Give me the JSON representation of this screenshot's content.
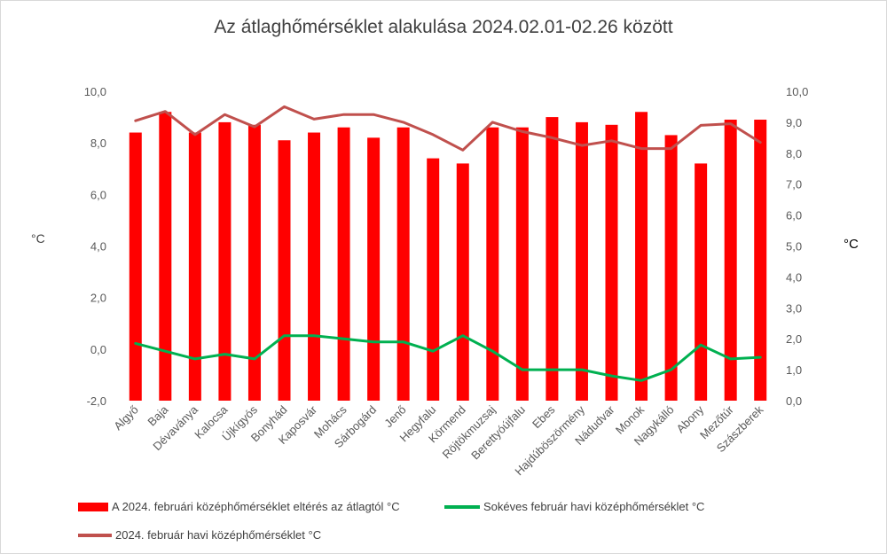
{
  "chart_data": {
    "type": "bar",
    "title": "Az átlaghőmérséklet alakulása 2024.02.01-02.26 között",
    "ylabel_left": "°C",
    "ylabel_right": "°C",
    "categories": [
      "Algyő",
      "Baja",
      "Dévaványa",
      "Kalocsa",
      "Újkígyós",
      "Bonyhád",
      "Kaposvár",
      "Mohács",
      "Sárbogárd",
      "Jenő",
      "Hegyfalu",
      "Körmend",
      "Röjtökmuzsaj",
      "Berettyóújfalu",
      "Ebes",
      "Hajdúböszörmény",
      "Nádudvar",
      "Monok",
      "Nagykálló",
      "Abony",
      "Mezőtúr",
      "Szászberek"
    ],
    "left_axis": {
      "min": -2,
      "max": 10,
      "ticks": [
        "-2,0",
        "0,0",
        "2,0",
        "4,0",
        "6,0",
        "8,0",
        "10,0"
      ]
    },
    "right_axis": {
      "min": 0,
      "max": 10,
      "ticks": [
        "0,0",
        "1,0",
        "2,0",
        "3,0",
        "4,0",
        "5,0",
        "6,0",
        "7,0",
        "8,0",
        "9,0",
        "10,0"
      ]
    },
    "series": [
      {
        "name": "A 2024. februári középhőmérséklet eltérés az átlagtól  °C",
        "kind": "bar",
        "axis": "left",
        "color": "#ff0000",
        "values": [
          8.4,
          9.2,
          8.4,
          8.8,
          8.7,
          8.1,
          8.4,
          8.6,
          8.2,
          8.6,
          7.4,
          7.2,
          8.6,
          8.6,
          9.0,
          8.8,
          8.7,
          9.2,
          8.3,
          7.2,
          8.9,
          8.9
        ]
      },
      {
        "name": "Sokéves február havi  középhőmérséklet °C",
        "kind": "line",
        "axis": "right",
        "color": "#00b050",
        "values": [
          1.85,
          1.6,
          1.35,
          1.5,
          1.35,
          2.1,
          2.1,
          2.0,
          1.9,
          1.9,
          1.6,
          2.1,
          1.6,
          1.0,
          1.0,
          1.0,
          0.8,
          0.65,
          1.0,
          1.8,
          1.35,
          1.4
        ]
      },
      {
        "name": "2024. február havi középhőmérséklet °C",
        "kind": "line",
        "axis": "right",
        "color": "#c0504d",
        "values": [
          9.05,
          9.35,
          8.6,
          9.25,
          8.85,
          9.5,
          9.1,
          9.25,
          9.25,
          9.0,
          8.6,
          8.1,
          9.0,
          8.7,
          8.5,
          8.25,
          8.4,
          8.15,
          8.15,
          8.9,
          8.95,
          8.35
        ]
      }
    ],
    "grid": false,
    "legend_position": "bottom"
  }
}
